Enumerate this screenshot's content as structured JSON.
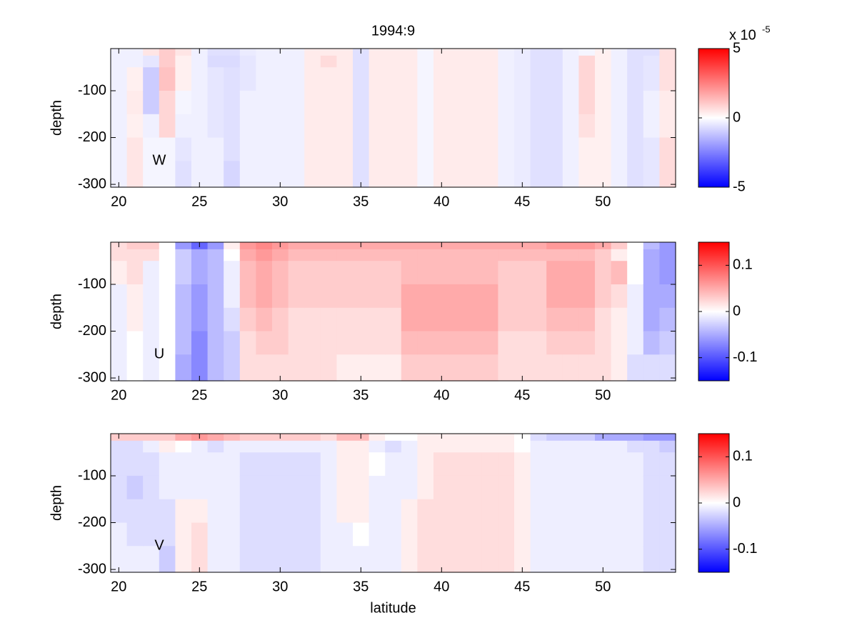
{
  "chart_data": [
    {
      "type": "heatmap",
      "title": "1994:9",
      "ylabel": "depth",
      "annotation": "W",
      "colorbar_exponent": {
        "base": "x 10",
        "exponent": "-5"
      },
      "colormap": [
        "#0000ff",
        "#ffffff",
        "#ff0000"
      ],
      "x": [
        20,
        21,
        22,
        23,
        24,
        25,
        26,
        27,
        28,
        29,
        30,
        31,
        32,
        33,
        34,
        35,
        36,
        37,
        38,
        39,
        40,
        41,
        42,
        43,
        44,
        45,
        46,
        47,
        48,
        49,
        50,
        51,
        52,
        53,
        54
      ],
      "y_edges": [
        -10,
        -25,
        -50,
        -100,
        -150,
        -200,
        -250,
        -306
      ],
      "values": [
        [
          -0.3,
          -0.3,
          -0.3,
          -0.3,
          -0.3,
          -0.3,
          -0.3
        ],
        [
          -0.3,
          -0.3,
          0.3,
          0.4,
          0.3,
          0.5,
          0.5
        ],
        [
          0.5,
          -0.5,
          -1,
          -1,
          -0.3,
          -0.2,
          -0.2
        ],
        [
          1,
          1,
          1.2,
          0.8,
          0.8,
          -0.2,
          -0.2
        ],
        [
          0.5,
          0.3,
          0.3,
          -0.2,
          -0.3,
          -0.5,
          -0.6
        ],
        [
          -0.3,
          -0.3,
          -0.3,
          -0.3,
          -0.3,
          -0.3,
          -0.3
        ],
        [
          -0.6,
          -0.7,
          -0.5,
          -0.5,
          -0.5,
          -0.3,
          -0.3
        ],
        [
          -0.6,
          -0.7,
          -0.6,
          -0.6,
          -0.6,
          -0.6,
          -0.8
        ],
        [
          -0.4,
          -0.5,
          -0.5,
          -0.3,
          -0.3,
          -0.3,
          -0.3
        ],
        [
          -0.3,
          -0.3,
          -0.3,
          -0.3,
          -0.3,
          -0.3,
          -0.3
        ],
        [
          -0.3,
          -0.3,
          -0.3,
          -0.3,
          -0.3,
          -0.3,
          -0.3
        ],
        [
          -0.3,
          -0.3,
          -0.3,
          -0.3,
          -0.3,
          -0.3,
          -0.3
        ],
        [
          0.4,
          0.4,
          0.4,
          0.4,
          0.4,
          0.4,
          0.4
        ],
        [
          0.4,
          0.7,
          0.4,
          0.4,
          0.4,
          0.4,
          0.4
        ],
        [
          0.4,
          0.4,
          0.4,
          0.4,
          0.4,
          0.4,
          0.4
        ],
        [
          -0.6,
          -0.6,
          -0.6,
          -0.6,
          -0.6,
          -0.6,
          -0.6
        ],
        [
          0.4,
          0.4,
          0.4,
          0.4,
          0.4,
          0.4,
          0.4
        ],
        [
          0.4,
          0.4,
          0.4,
          0.4,
          0.4,
          0.4,
          0.4
        ],
        [
          0.4,
          0.4,
          0.4,
          0.4,
          0.4,
          0.4,
          0.4
        ],
        [
          -0.2,
          -0.2,
          -0.2,
          -0.2,
          -0.2,
          -0.2,
          -0.2
        ],
        [
          0.4,
          0.4,
          0.4,
          0.4,
          0.4,
          0.4,
          0.4
        ],
        [
          0.4,
          0.4,
          0.4,
          0.4,
          0.4,
          0.4,
          0.4
        ],
        [
          0.4,
          0.4,
          0.4,
          0.4,
          0.4,
          0.4,
          0.4
        ],
        [
          0.4,
          0.4,
          0.4,
          0.4,
          0.4,
          0.4,
          0.4
        ],
        [
          -0.3,
          -0.3,
          -0.3,
          -0.3,
          -0.3,
          -0.3,
          -0.3
        ],
        [
          -0.4,
          -0.4,
          -0.4,
          -0.4,
          -0.4,
          -0.4,
          -0.4
        ],
        [
          -0.6,
          -0.6,
          -0.6,
          -0.6,
          -0.6,
          -0.6,
          -0.6
        ],
        [
          -0.6,
          -0.6,
          -0.6,
          -0.6,
          -0.6,
          -0.6,
          -0.6
        ],
        [
          -0.3,
          -0.3,
          -0.3,
          -0.3,
          -0.3,
          -0.3,
          -0.3
        ],
        [
          -0.2,
          0.8,
          0.8,
          0.8,
          0.6,
          0.3,
          0.3
        ],
        [
          0.3,
          0.3,
          0.3,
          0.3,
          0.3,
          0.3,
          0.3
        ],
        [
          -0.3,
          -0.3,
          -0.3,
          -0.3,
          -0.3,
          -0.3,
          -0.3
        ],
        [
          -0.6,
          -0.6,
          -0.6,
          -0.6,
          -0.6,
          -0.6,
          -0.6
        ],
        [
          -0.6,
          -0.5,
          -0.5,
          -0.3,
          -0.3,
          -0.5,
          -0.5
        ],
        [
          0.6,
          0.6,
          0.6,
          0.4,
          0.4,
          0.7,
          0.7
        ]
      ],
      "xlim": [
        19.5,
        54.5
      ],
      "ylim": [
        -306,
        -10
      ],
      "xticks": [
        20,
        25,
        30,
        35,
        40,
        45,
        50
      ],
      "yticks": [
        -300,
        -200,
        -100
      ],
      "clim": [
        -5,
        5
      ],
      "cticks": [
        -5,
        0,
        5
      ]
    },
    {
      "type": "heatmap",
      "ylabel": "depth",
      "annotation": "U",
      "colormap": [
        "#0000ff",
        "#ffffff",
        "#ff0000"
      ],
      "x": [
        20,
        21,
        22,
        23,
        24,
        25,
        26,
        27,
        28,
        29,
        30,
        31,
        32,
        33,
        34,
        35,
        36,
        37,
        38,
        39,
        40,
        41,
        42,
        43,
        44,
        45,
        46,
        47,
        48,
        49,
        50,
        51,
        52,
        53,
        54
      ],
      "y_edges": [
        -10,
        -25,
        -50,
        -100,
        -150,
        -200,
        -250,
        -306
      ],
      "values": [
        [
          0.02,
          0.02,
          0.01,
          -0.01,
          -0.01,
          -0.01,
          -0.01
        ],
        [
          0.03,
          0.02,
          0.02,
          0.01,
          0.01,
          0,
          0
        ],
        [
          0.03,
          0.02,
          -0.01,
          -0.01,
          -0.01,
          -0.01,
          -0.01
        ],
        [
          0,
          0,
          0,
          0,
          0,
          0,
          0
        ],
        [
          -0.06,
          -0.03,
          -0.03,
          -0.04,
          -0.04,
          -0.04,
          -0.05
        ],
        [
          -0.09,
          -0.05,
          -0.05,
          -0.06,
          -0.06,
          -0.07,
          -0.07
        ],
        [
          -0.06,
          -0.04,
          -0.04,
          -0.04,
          -0.04,
          -0.04,
          -0.04
        ],
        [
          0.01,
          0,
          -0.01,
          -0.01,
          -0.02,
          -0.03,
          -0.03
        ],
        [
          0.06,
          0.05,
          0.04,
          0.04,
          0.03,
          0.02,
          0.02
        ],
        [
          0.07,
          0.06,
          0.05,
          0.05,
          0.04,
          0.03,
          0.02
        ],
        [
          0.06,
          0.05,
          0.04,
          0.04,
          0.03,
          0.03,
          0.02
        ],
        [
          0.05,
          0.04,
          0.03,
          0.03,
          0.02,
          0.02,
          0.02
        ],
        [
          0.05,
          0.04,
          0.03,
          0.03,
          0.02,
          0.02,
          0.02
        ],
        [
          0.05,
          0.04,
          0.03,
          0.03,
          0.02,
          0.02,
          0.02
        ],
        [
          0.05,
          0.04,
          0.03,
          0.03,
          0.02,
          0.02,
          0.01
        ],
        [
          0.05,
          0.04,
          0.03,
          0.03,
          0.02,
          0.02,
          0.01
        ],
        [
          0.05,
          0.04,
          0.03,
          0.03,
          0.02,
          0.02,
          0.01
        ],
        [
          0.05,
          0.04,
          0.03,
          0.03,
          0.02,
          0.02,
          0.01
        ],
        [
          0.05,
          0.04,
          0.04,
          0.05,
          0.05,
          0.04,
          0.03
        ],
        [
          0.05,
          0.04,
          0.04,
          0.05,
          0.05,
          0.04,
          0.03
        ],
        [
          0.05,
          0.04,
          0.04,
          0.05,
          0.05,
          0.04,
          0.03
        ],
        [
          0.05,
          0.04,
          0.04,
          0.05,
          0.05,
          0.04,
          0.03
        ],
        [
          0.05,
          0.04,
          0.04,
          0.05,
          0.05,
          0.04,
          0.03
        ],
        [
          0.05,
          0.04,
          0.04,
          0.05,
          0.05,
          0.04,
          0.03
        ],
        [
          0.05,
          0.04,
          0.03,
          0.03,
          0.03,
          0.02,
          0.02
        ],
        [
          0.05,
          0.04,
          0.03,
          0.03,
          0.03,
          0.02,
          0.02
        ],
        [
          0.05,
          0.04,
          0.03,
          0.03,
          0.03,
          0.02,
          0.02
        ],
        [
          0.06,
          0.04,
          0.05,
          0.05,
          0.04,
          0.03,
          0.02
        ],
        [
          0.06,
          0.04,
          0.05,
          0.05,
          0.04,
          0.03,
          0.02
        ],
        [
          0.06,
          0.04,
          0.05,
          0.05,
          0.04,
          0.03,
          0.02
        ],
        [
          0.05,
          0.03,
          0.03,
          0.03,
          0.02,
          0.02,
          0.02
        ],
        [
          0.03,
          0.01,
          0.04,
          0.02,
          0.01,
          0.01,
          0.01
        ],
        [
          0,
          0,
          0,
          -0.01,
          -0.01,
          -0.01,
          -0.02
        ],
        [
          -0.04,
          -0.05,
          -0.05,
          -0.05,
          -0.05,
          -0.04,
          -0.02
        ],
        [
          -0.06,
          -0.06,
          -0.06,
          -0.05,
          -0.04,
          -0.03,
          -0.02
        ]
      ],
      "xlim": [
        19.5,
        54.5
      ],
      "ylim": [
        -306,
        -10
      ],
      "xticks": [
        20,
        25,
        30,
        35,
        40,
        45,
        50
      ],
      "yticks": [
        -300,
        -200,
        -100
      ],
      "clim": [
        -0.15,
        0.15
      ],
      "cticks": [
        -0.1,
        0,
        0.1
      ]
    },
    {
      "type": "heatmap",
      "ylabel": "depth",
      "xlabel": "latitude",
      "annotation": "V",
      "colormap": [
        "#0000ff",
        "#ffffff",
        "#ff0000"
      ],
      "x": [
        20,
        21,
        22,
        23,
        24,
        25,
        26,
        27,
        28,
        29,
        30,
        31,
        32,
        33,
        34,
        35,
        36,
        37,
        38,
        39,
        40,
        41,
        42,
        43,
        44,
        45,
        46,
        47,
        48,
        49,
        50,
        51,
        52,
        53,
        54
      ],
      "y_edges": [
        -10,
        -25,
        -50,
        -100,
        -150,
        -200,
        -250,
        -306
      ],
      "values": [
        [
          0.03,
          -0.02,
          -0.02,
          -0.02,
          -0.02,
          -0.01,
          -0.01
        ],
        [
          0.03,
          -0.02,
          -0.02,
          -0.03,
          -0.02,
          -0.02,
          -0.01
        ],
        [
          0.03,
          -0.01,
          -0.02,
          -0.02,
          -0.02,
          -0.02,
          -0.01
        ],
        [
          0.03,
          0.01,
          -0.01,
          -0.01,
          -0.02,
          -0.02,
          -0.03
        ],
        [
          0.05,
          0,
          -0.01,
          -0.01,
          0.01,
          0.01,
          0.01
        ],
        [
          0.06,
          -0.01,
          -0.01,
          -0.01,
          0.01,
          0.02,
          0.02
        ],
        [
          0.05,
          -0.02,
          -0.01,
          -0.01,
          -0.01,
          -0.01,
          -0.01
        ],
        [
          0.04,
          -0.01,
          -0.01,
          -0.01,
          -0.01,
          -0.01,
          -0.01
        ],
        [
          0.03,
          -0.01,
          -0.02,
          -0.02,
          -0.02,
          -0.02,
          -0.02
        ],
        [
          0.03,
          -0.01,
          -0.02,
          -0.02,
          -0.02,
          -0.02,
          -0.02
        ],
        [
          0.03,
          -0.01,
          -0.02,
          -0.02,
          -0.02,
          -0.02,
          -0.02
        ],
        [
          0.03,
          -0.01,
          -0.02,
          -0.02,
          -0.02,
          -0.02,
          -0.02
        ],
        [
          0.03,
          -0.01,
          -0.02,
          -0.02,
          -0.02,
          -0.02,
          -0.02
        ],
        [
          0.02,
          -0.01,
          -0.01,
          -0.01,
          -0.01,
          -0.01,
          -0.01
        ],
        [
          0.04,
          0.01,
          0.01,
          0.01,
          0.01,
          -0.01,
          -0.01
        ],
        [
          0.04,
          0.01,
          0.01,
          0.01,
          0.01,
          0,
          -0.01
        ],
        [
          0.01,
          -0.01,
          0,
          -0.01,
          -0.01,
          -0.01,
          -0.01
        ],
        [
          0,
          -0.02,
          -0.01,
          -0.01,
          -0.01,
          -0.01,
          -0.01
        ],
        [
          0,
          -0.01,
          -0.01,
          -0.01,
          0.01,
          0.01,
          0.01
        ],
        [
          0.01,
          0.01,
          0.01,
          0.01,
          0.02,
          0.02,
          0.02
        ],
        [
          0.01,
          0.01,
          0.02,
          0.02,
          0.02,
          0.02,
          0.02
        ],
        [
          0.01,
          0.01,
          0.02,
          0.02,
          0.02,
          0.02,
          0.02
        ],
        [
          0.01,
          0.01,
          0.02,
          0.02,
          0.02,
          0.02,
          0.02
        ],
        [
          0.01,
          0.01,
          0.02,
          0.02,
          0.02,
          0.02,
          0.02
        ],
        [
          0.01,
          0.01,
          0.02,
          0.02,
          0.02,
          0.02,
          0.02
        ],
        [
          0,
          0,
          0.01,
          0.01,
          0.01,
          0.01,
          0.01
        ],
        [
          -0.02,
          -0.01,
          -0.01,
          -0.01,
          -0.01,
          -0.01,
          -0.01
        ],
        [
          -0.03,
          -0.01,
          -0.01,
          -0.01,
          -0.01,
          -0.01,
          -0.01
        ],
        [
          -0.03,
          -0.01,
          -0.01,
          -0.01,
          -0.01,
          -0.01,
          -0.01
        ],
        [
          -0.03,
          -0.01,
          -0.01,
          -0.01,
          -0.01,
          -0.01,
          -0.01
        ],
        [
          -0.05,
          -0.01,
          -0.01,
          -0.01,
          -0.01,
          -0.01,
          -0.01
        ],
        [
          -0.05,
          -0.01,
          -0.01,
          -0.01,
          -0.01,
          -0.01,
          -0.01
        ],
        [
          -0.05,
          -0.02,
          -0.01,
          -0.01,
          -0.01,
          -0.01,
          -0.01
        ],
        [
          -0.06,
          -0.02,
          -0.02,
          -0.02,
          -0.02,
          -0.02,
          -0.02
        ],
        [
          -0.06,
          -0.03,
          -0.02,
          -0.02,
          -0.02,
          -0.02,
          -0.02
        ]
      ],
      "xlim": [
        19.5,
        54.5
      ],
      "ylim": [
        -306,
        -10
      ],
      "xticks": [
        20,
        25,
        30,
        35,
        40,
        45,
        50
      ],
      "yticks": [
        -300,
        -200,
        -100
      ],
      "clim": [
        -0.15,
        0.15
      ],
      "cticks": [
        -0.1,
        0,
        0.1
      ]
    }
  ]
}
